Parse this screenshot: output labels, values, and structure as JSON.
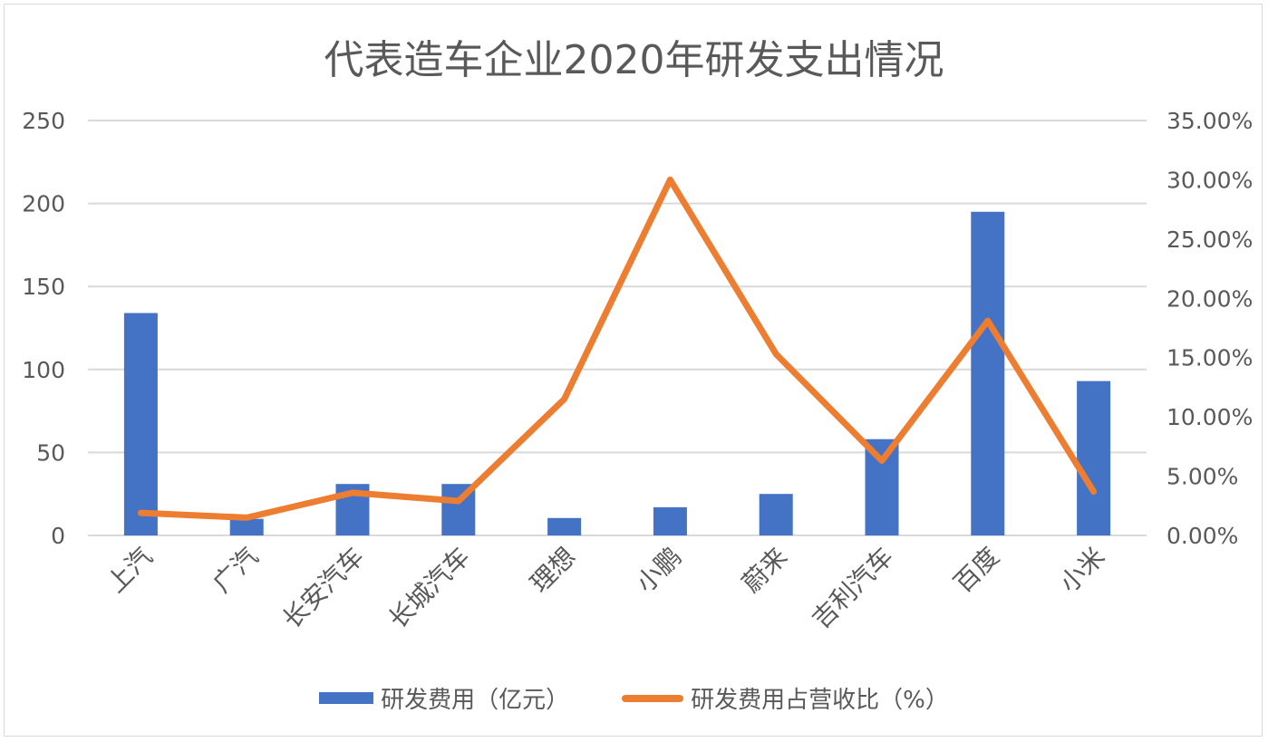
{
  "colors": {
    "bar": "#4472c4",
    "line": "#ed7d31",
    "grid": "#d9d9d9",
    "text": "#595959"
  },
  "chart_data": {
    "type": "bar",
    "title": "代表造车企业2020年研发支出情况",
    "categories": [
      "上汽",
      "广汽",
      "长安汽车",
      "长城汽车",
      "理想",
      "小鹏",
      "蔚来",
      "吉利汽车",
      "百度",
      "小米"
    ],
    "series": [
      {
        "name": "研发费用（亿元）",
        "type": "bar",
        "axis": "left",
        "values": [
          134,
          10,
          31,
          31,
          10.5,
          17,
          25,
          58,
          195,
          93
        ]
      },
      {
        "name": "研发费用占营收比（%）",
        "type": "line",
        "axis": "right",
        "values": [
          0.019,
          0.015,
          0.036,
          0.029,
          0.115,
          0.3,
          0.153,
          0.063,
          0.181,
          0.037
        ]
      }
    ],
    "left_axis": {
      "min": 0,
      "max": 250,
      "ticks": [
        "0",
        "50",
        "100",
        "150",
        "200",
        "250"
      ]
    },
    "right_axis": {
      "min": 0,
      "max": 0.35,
      "ticks": [
        "0.00%",
        "5.00%",
        "10.00%",
        "15.00%",
        "20.00%",
        "25.00%",
        "30.00%",
        "35.00%"
      ]
    },
    "grid": true,
    "legend": "bottom"
  }
}
